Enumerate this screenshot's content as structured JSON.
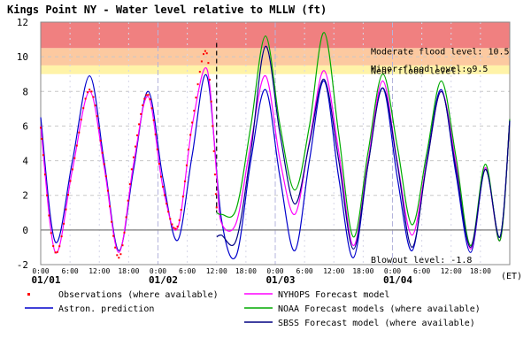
{
  "chart_data": {
    "type": "line",
    "title": "Kings Point NY  -  Water level relative to MLLW (ft)",
    "time_zone_label": "(ET)",
    "ylim": [
      -2,
      12
    ],
    "yticks": [
      -2,
      0,
      2,
      4,
      6,
      8,
      10,
      12
    ],
    "xlim_hours": [
      0,
      96
    ],
    "xtick_hour_labels": [
      "0:00",
      "6:00",
      "12:00",
      "18:00",
      "0:00",
      "6:00",
      "12:00",
      "18:00",
      "0:00",
      "6:00",
      "12:00",
      "18:00",
      "0:00",
      "6:00",
      "12:00",
      "18:00"
    ],
    "date_labels": [
      "01/01",
      "01/02",
      "01/03",
      "01/04"
    ],
    "nowcast_divider_hour": 36,
    "flood_bands": [
      {
        "name": "Moderate flood",
        "from": 10.5,
        "to": 12,
        "color": "#f08080"
      },
      {
        "name": "Minor flood",
        "from": 9.5,
        "to": 10.5,
        "color": "#fcc9a0"
      },
      {
        "name": "Near flood",
        "from": 9,
        "to": 9.5,
        "color": "#fff3a8"
      }
    ],
    "threshold_labels": [
      {
        "text": "Moderate flood level: 10.5",
        "value": 10.5
      },
      {
        "text": "Minor flood level: 9.5",
        "value": 9.5
      },
      {
        "text": "Near flood level: 9",
        "value": 9
      },
      {
        "text": "Blowout level: -1.8",
        "value": -1.8
      }
    ],
    "series": [
      {
        "name": "Observations (where available)",
        "style": "dots",
        "color": "#ff0000",
        "x": [
          0,
          3,
          6.5,
          10,
          13,
          16,
          19,
          22,
          25,
          28,
          31,
          34,
          36
        ],
        "y": [
          5.9,
          -1.3,
          3.5,
          8.1,
          3.8,
          -1.6,
          4.2,
          7.8,
          2.5,
          0.2,
          6.2,
          10.2,
          1.3
        ]
      },
      {
        "name": "Astron. prediction",
        "style": "line",
        "color": "#0000cc",
        "x": [
          0,
          3,
          6.5,
          10,
          13,
          16,
          19,
          22,
          25,
          28,
          31,
          34,
          37,
          40,
          43,
          46,
          49,
          52,
          55,
          58,
          61,
          64,
          67,
          70,
          73,
          76,
          79,
          82,
          85,
          88,
          91,
          94,
          96
        ],
        "y": [
          6.5,
          -0.7,
          4.0,
          8.9,
          3.9,
          -1.2,
          3.5,
          8.0,
          3.0,
          -0.6,
          4.3,
          8.9,
          0.6,
          -1.5,
          4.0,
          8.1,
          3.0,
          -1.2,
          4.0,
          8.6,
          3.0,
          -1.6,
          3.8,
          8.2,
          3.0,
          -1.2,
          4.0,
          8.1,
          3.2,
          -1.3,
          3.5,
          -0.4,
          6.3
        ]
      },
      {
        "name": "NYHOPS Forecast model",
        "style": "line",
        "color": "#ff00ff",
        "x": [
          0,
          3,
          6.5,
          10,
          13,
          16,
          19,
          22,
          25,
          28,
          31,
          34,
          36,
          37,
          40,
          43,
          46,
          49,
          52,
          55,
          58,
          61,
          64,
          67,
          70,
          73,
          76,
          79,
          82,
          85,
          88,
          91,
          94,
          96
        ],
        "y": [
          6.0,
          -1.3,
          3.5,
          8.0,
          3.6,
          -1.3,
          3.8,
          7.7,
          2.5,
          0.1,
          6.0,
          9.3,
          3.2,
          0.4,
          0.4,
          5.0,
          8.9,
          4.0,
          0.9,
          5.1,
          9.2,
          4.5,
          -0.9,
          4.0,
          8.6,
          3.9,
          -0.3,
          3.9,
          8.0,
          3.8,
          -1.1,
          3.6,
          -0.6,
          6.4
        ]
      },
      {
        "name": "NOAA Forecast models (where available)",
        "style": "line",
        "color": "#00aa00",
        "x": [
          36,
          37,
          40,
          43,
          46,
          49,
          52,
          55,
          58,
          61,
          64,
          67,
          70,
          73,
          76,
          79,
          82,
          85,
          88,
          91,
          94,
          96
        ],
        "y": [
          1.0,
          0.9,
          1.2,
          6.0,
          11.2,
          6.0,
          2.3,
          6.0,
          11.4,
          5.5,
          -0.4,
          4.5,
          9.0,
          4.8,
          0.3,
          4.4,
          8.6,
          4.2,
          -0.9,
          3.8,
          -0.6,
          6.4
        ]
      },
      {
        "name": "SBSS Forecast model (where available)",
        "style": "line",
        "color": "#000080",
        "x": [
          36,
          37,
          40,
          43,
          46,
          49,
          52,
          55,
          58,
          61,
          64,
          67,
          70,
          73,
          76,
          79,
          82,
          85,
          88,
          91,
          94,
          96
        ],
        "y": [
          -0.4,
          -0.3,
          -0.6,
          4.5,
          10.6,
          5.5,
          1.5,
          5.0,
          8.7,
          4.0,
          -1.1,
          3.8,
          8.2,
          3.8,
          -1.0,
          3.8,
          8.0,
          3.5,
          -1.0,
          3.5,
          -0.4,
          6.3
        ]
      }
    ]
  }
}
